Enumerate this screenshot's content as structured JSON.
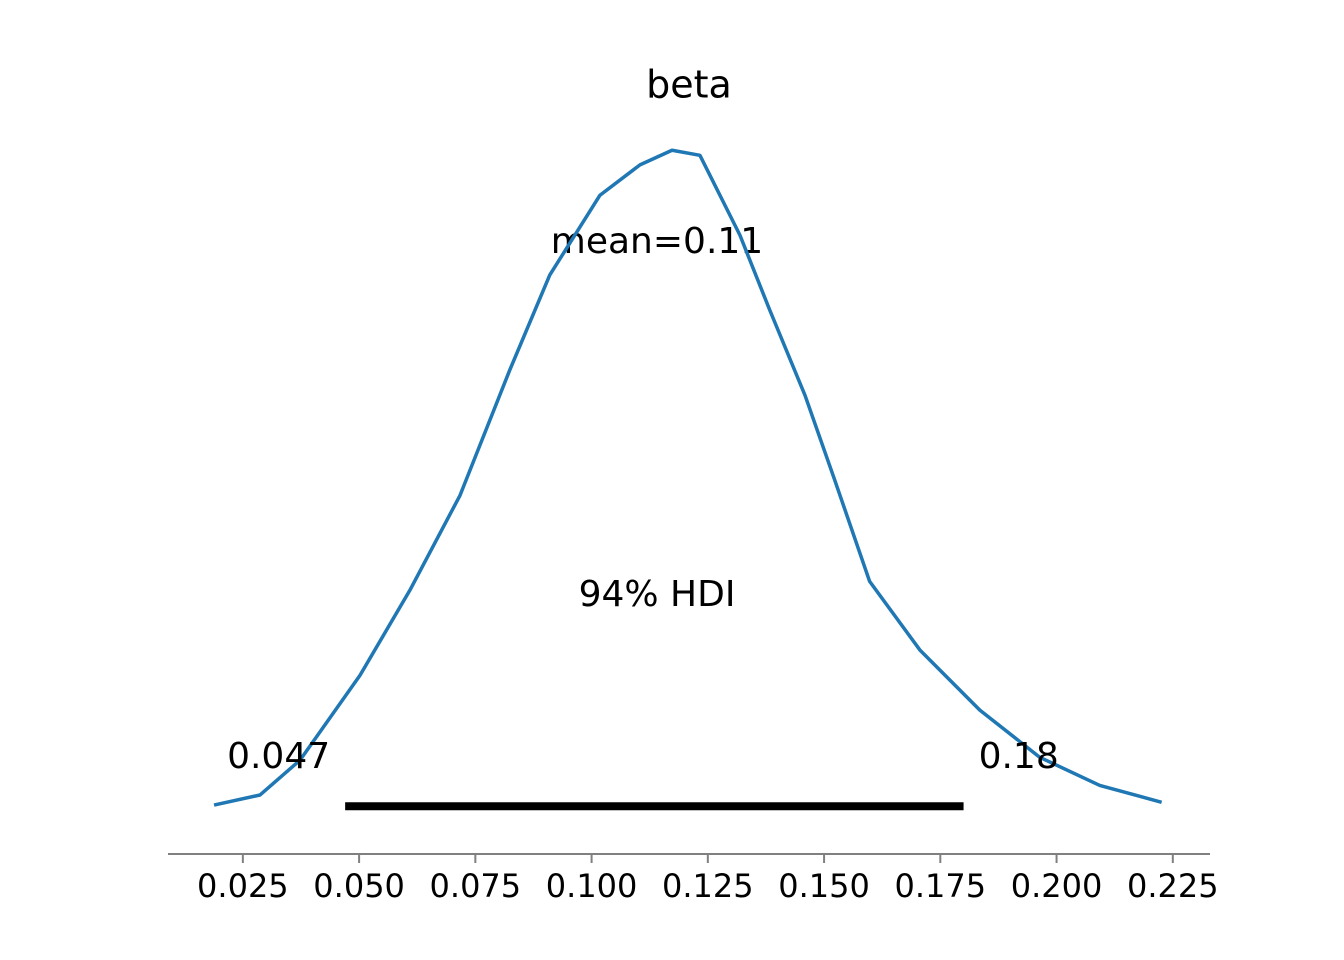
{
  "chart_data": {
    "type": "density",
    "title": "beta",
    "x": [
      0.0188,
      0.0287,
      0.0373,
      0.0502,
      0.0609,
      0.0717,
      0.0824,
      0.091,
      0.1018,
      0.1104,
      0.1173,
      0.1233,
      0.1319,
      0.1383,
      0.1459,
      0.1523,
      0.1598,
      0.1706,
      0.1835,
      0.1964,
      0.2093,
      0.2226
    ],
    "values": [
      0.02,
      0.2,
      0.82,
      2.33,
      3.84,
      5.53,
      7.76,
      9.45,
      10.87,
      11.41,
      11.67,
      11.58,
      10.16,
      8.83,
      7.31,
      5.8,
      4.0,
      2.78,
      1.71,
      0.87,
      0.37,
      0.07
    ],
    "color": "#1f77b4",
    "mean": {
      "value": 0.11,
      "label": "mean=0.11"
    },
    "hdi": [
      0.047,
      0.18
    ],
    "hdi_label": "94% HDI",
    "xlim": [
      0.0089,
      0.233
    ],
    "ylim": [
      -0.85,
      12.6
    ],
    "xticks": [
      0.025,
      {
        "value": 0.05,
        "label": "0.050"
      },
      0.075,
      {
        "value": 0.1,
        "label": "0.100"
      },
      0.125,
      {
        "value": 0.15,
        "label": "0.150"
      },
      0.175,
      {
        "value": 0.2,
        "label": "0.200"
      },
      0.225
    ]
  }
}
